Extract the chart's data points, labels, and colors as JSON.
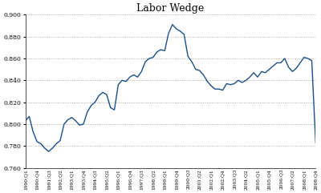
{
  "title": "Labor Wedge",
  "ylim": [
    0.76,
    0.9
  ],
  "yticks": [
    0.76,
    0.78,
    0.8,
    0.82,
    0.84,
    0.86,
    0.88,
    0.9
  ],
  "line_color": "#1a4f8a",
  "line_width": 1.0,
  "background_color": "#ffffff",
  "grid_color": "#999999",
  "values": [
    0.803,
    0.807,
    0.793,
    0.784,
    0.782,
    0.778,
    0.775,
    0.778,
    0.782,
    0.785,
    0.8,
    0.804,
    0.806,
    0.803,
    0.799,
    0.8,
    0.811,
    0.817,
    0.82,
    0.826,
    0.829,
    0.827,
    0.815,
    0.813,
    0.836,
    0.84,
    0.839,
    0.843,
    0.845,
    0.843,
    0.848,
    0.857,
    0.86,
    0.861,
    0.866,
    0.868,
    0.867,
    0.883,
    0.891,
    0.887,
    0.885,
    0.882,
    0.862,
    0.857,
    0.85,
    0.849,
    0.845,
    0.839,
    0.835,
    0.832,
    0.832,
    0.831,
    0.837,
    0.836,
    0.837,
    0.84,
    0.838,
    0.84,
    0.843,
    0.847,
    0.843,
    0.848,
    0.847,
    0.85,
    0.853,
    0.856,
    0.856,
    0.86,
    0.852,
    0.848,
    0.851,
    0.856,
    0.861,
    0.86,
    0.858,
    0.783
  ],
  "xtick_labels": [
    "1990:Q1",
    "1990:Q4",
    "1991:Q3",
    "1992:Q2",
    "1993:Q1",
    "1993:Q4",
    "1994:Q3",
    "1995:Q2",
    "1996:Q1",
    "1996:Q4",
    "1997:Q3",
    "1998:Q2",
    "1999:Q1",
    "1999:Q4",
    "2000:Q3",
    "2001:Q2",
    "2002:Q1",
    "2002:Q4",
    "2003:Q3",
    "2004:Q2",
    "2005:Q1",
    "2005:Q4",
    "2006:Q3",
    "2007:Q2",
    "2008:Q1",
    "2008:Q4"
  ]
}
